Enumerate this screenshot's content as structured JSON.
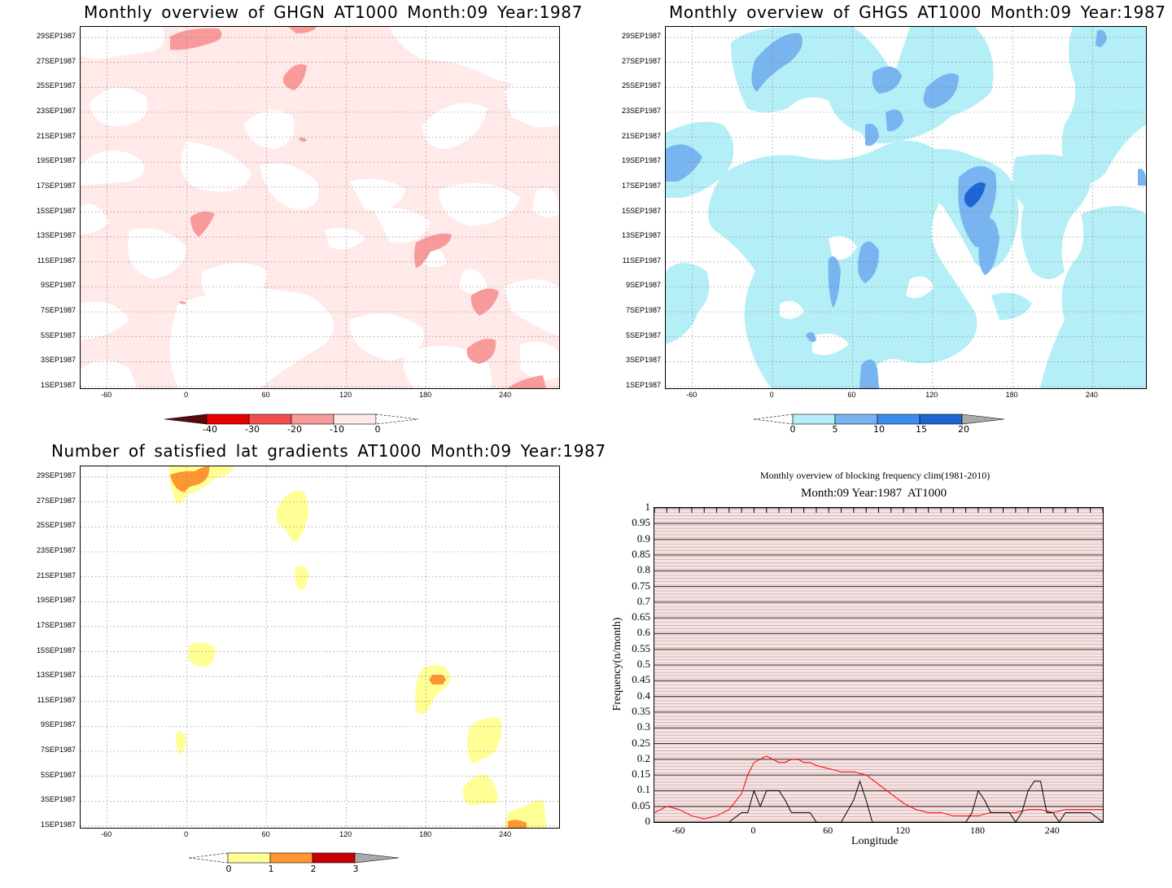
{
  "panels": {
    "ghgn": {
      "title": "Monthly overview of GHGN AT1000 Month:09 Year:1987",
      "colorbar_ticks": [
        "-40",
        "-30",
        "-20",
        "-10",
        "0"
      ],
      "colors": [
        "#5a0a0a",
        "#e60000",
        "#f04e4e",
        "#f89a9a",
        "#ffe9e9"
      ]
    },
    "ghgs": {
      "title": "Monthly overview of GHGS AT1000 Month:09 Year:1987",
      "colorbar_ticks": [
        "0",
        "5",
        "10",
        "15",
        "20"
      ],
      "colors": [
        "#b4eef6",
        "#78b4f0",
        "#3c8cf0",
        "#1e64d2",
        "#aaaaaa"
      ]
    },
    "lat": {
      "title": "Number of satisfied lat gradients AT1000 Month:09 Year:1987",
      "colorbar_ticks": [
        "0",
        "1",
        "2",
        "3"
      ],
      "colors": [
        "#ffff96",
        "#ff9632",
        "#c80000",
        "#aaaaaa"
      ]
    },
    "freq": {
      "title": "Monthly overview of blocking frequency clim(1981-2010)",
      "subtitle": "Month:09 Year:1987  AT1000",
      "ylabel": "Frequency(n/month)",
      "xlabel": "Longitude"
    }
  },
  "date_axis": [
    "1SEP1987",
    "3SEP1987",
    "5SEP1987",
    "7SEP1987",
    "9SEP1987",
    "11SEP1987",
    "13SEP1987",
    "15SEP1987",
    "17SEP1987",
    "19SEP1987",
    "21SEP1987",
    "23SEP1987",
    "25SEP1987",
    "27SEP1987",
    "29SEP1987"
  ],
  "lon_axis": [
    "-60",
    "0",
    "60",
    "120",
    "180",
    "240"
  ],
  "chart_data": [
    {
      "type": "heatmap",
      "title": "Monthly overview of GHGN AT1000 Month:09 Year:1987",
      "x_ticks": [
        -60,
        0,
        60,
        120,
        180,
        240
      ],
      "y_ticks": [
        "1SEP1987",
        "3SEP1987",
        "5SEP1987",
        "7SEP1987",
        "9SEP1987",
        "11SEP1987",
        "13SEP1987",
        "15SEP1987",
        "17SEP1987",
        "19SEP1987",
        "21SEP1987",
        "23SEP1987",
        "25SEP1987",
        "27SEP1987",
        "29SEP1987"
      ],
      "xlim": [
        -80,
        280
      ],
      "colorbar": [
        -40,
        -30,
        -20,
        -10,
        0
      ]
    },
    {
      "type": "heatmap",
      "title": "Monthly overview of GHGS AT1000 Month:09 Year:1987",
      "x_ticks": [
        -60,
        0,
        60,
        120,
        180,
        240
      ],
      "xlim": [
        -80,
        280
      ],
      "colorbar": [
        0,
        5,
        10,
        15,
        20
      ]
    },
    {
      "type": "heatmap",
      "title": "Number of satisfied lat gradients AT1000 Month:09 Year:1987",
      "x_ticks": [
        -60,
        0,
        60,
        120,
        180,
        240
      ],
      "xlim": [
        -80,
        280
      ],
      "colorbar": [
        0,
        1,
        2,
        3
      ]
    },
    {
      "type": "line",
      "title": "Monthly overview of blocking frequency clim(1981-2010)",
      "subtitle": "Month:09 Year:1987  AT1000",
      "xlabel": "Longitude",
      "ylabel": "Frequency(n/month)",
      "xlim": [
        -80,
        280
      ],
      "ylim": [
        0,
        1
      ],
      "y_ticks": [
        "0",
        "0.05",
        "0.1",
        "0.15",
        "0.2",
        "0.25",
        "0.3",
        "0.35",
        "0.4",
        "0.45",
        "0.5",
        "0.55",
        "0.6",
        "0.65",
        "0.7",
        "0.75",
        "0.8",
        "0.85",
        "0.9",
        "0.95",
        "1"
      ],
      "x_ticks": [
        "-60",
        "0",
        "60",
        "120",
        "180",
        "240"
      ],
      "series": [
        {
          "color": "#ff0000",
          "x": [
            -80,
            -70,
            -60,
            -50,
            -40,
            -30,
            -20,
            -10,
            -5,
            0,
            5,
            10,
            15,
            20,
            25,
            30,
            35,
            40,
            45,
            50,
            60,
            70,
            80,
            90,
            100,
            110,
            120,
            130,
            140,
            150,
            160,
            170,
            180,
            190,
            200,
            210,
            220,
            230,
            240,
            250,
            260,
            270,
            280
          ],
          "values": [
            0.03,
            0.05,
            0.04,
            0.02,
            0.01,
            0.02,
            0.04,
            0.09,
            0.15,
            0.19,
            0.2,
            0.21,
            0.2,
            0.19,
            0.19,
            0.2,
            0.2,
            0.19,
            0.19,
            0.18,
            0.17,
            0.16,
            0.16,
            0.15,
            0.12,
            0.09,
            0.06,
            0.04,
            0.03,
            0.03,
            0.02,
            0.02,
            0.02,
            0.03,
            0.03,
            0.03,
            0.04,
            0.04,
            0.03,
            0.04,
            0.04,
            0.04,
            0.04
          ]
        },
        {
          "color": "#000000",
          "x": [
            -80,
            -30,
            -20,
            -10,
            -5,
            0,
            5,
            10,
            15,
            20,
            25,
            30,
            35,
            40,
            45,
            50,
            55,
            60,
            70,
            80,
            85,
            90,
            95,
            100,
            105,
            110,
            170,
            175,
            180,
            185,
            190,
            195,
            200,
            205,
            210,
            215,
            220,
            225,
            230,
            235,
            240,
            245,
            250,
            260,
            270,
            280
          ],
          "values": [
            0,
            0,
            0,
            0.03,
            0.03,
            0.1,
            0.05,
            0.1,
            0.1,
            0.1,
            0.07,
            0.03,
            0.03,
            0.03,
            0.03,
            0,
            0,
            0,
            0,
            0.07,
            0.13,
            0.07,
            0,
            0,
            0,
            0,
            0,
            0.03,
            0.1,
            0.07,
            0.03,
            0.03,
            0.03,
            0.03,
            0,
            0.03,
            0.1,
            0.13,
            0.13,
            0.03,
            0.03,
            0,
            0.03,
            0.03,
            0.03,
            0
          ]
        }
      ]
    }
  ]
}
